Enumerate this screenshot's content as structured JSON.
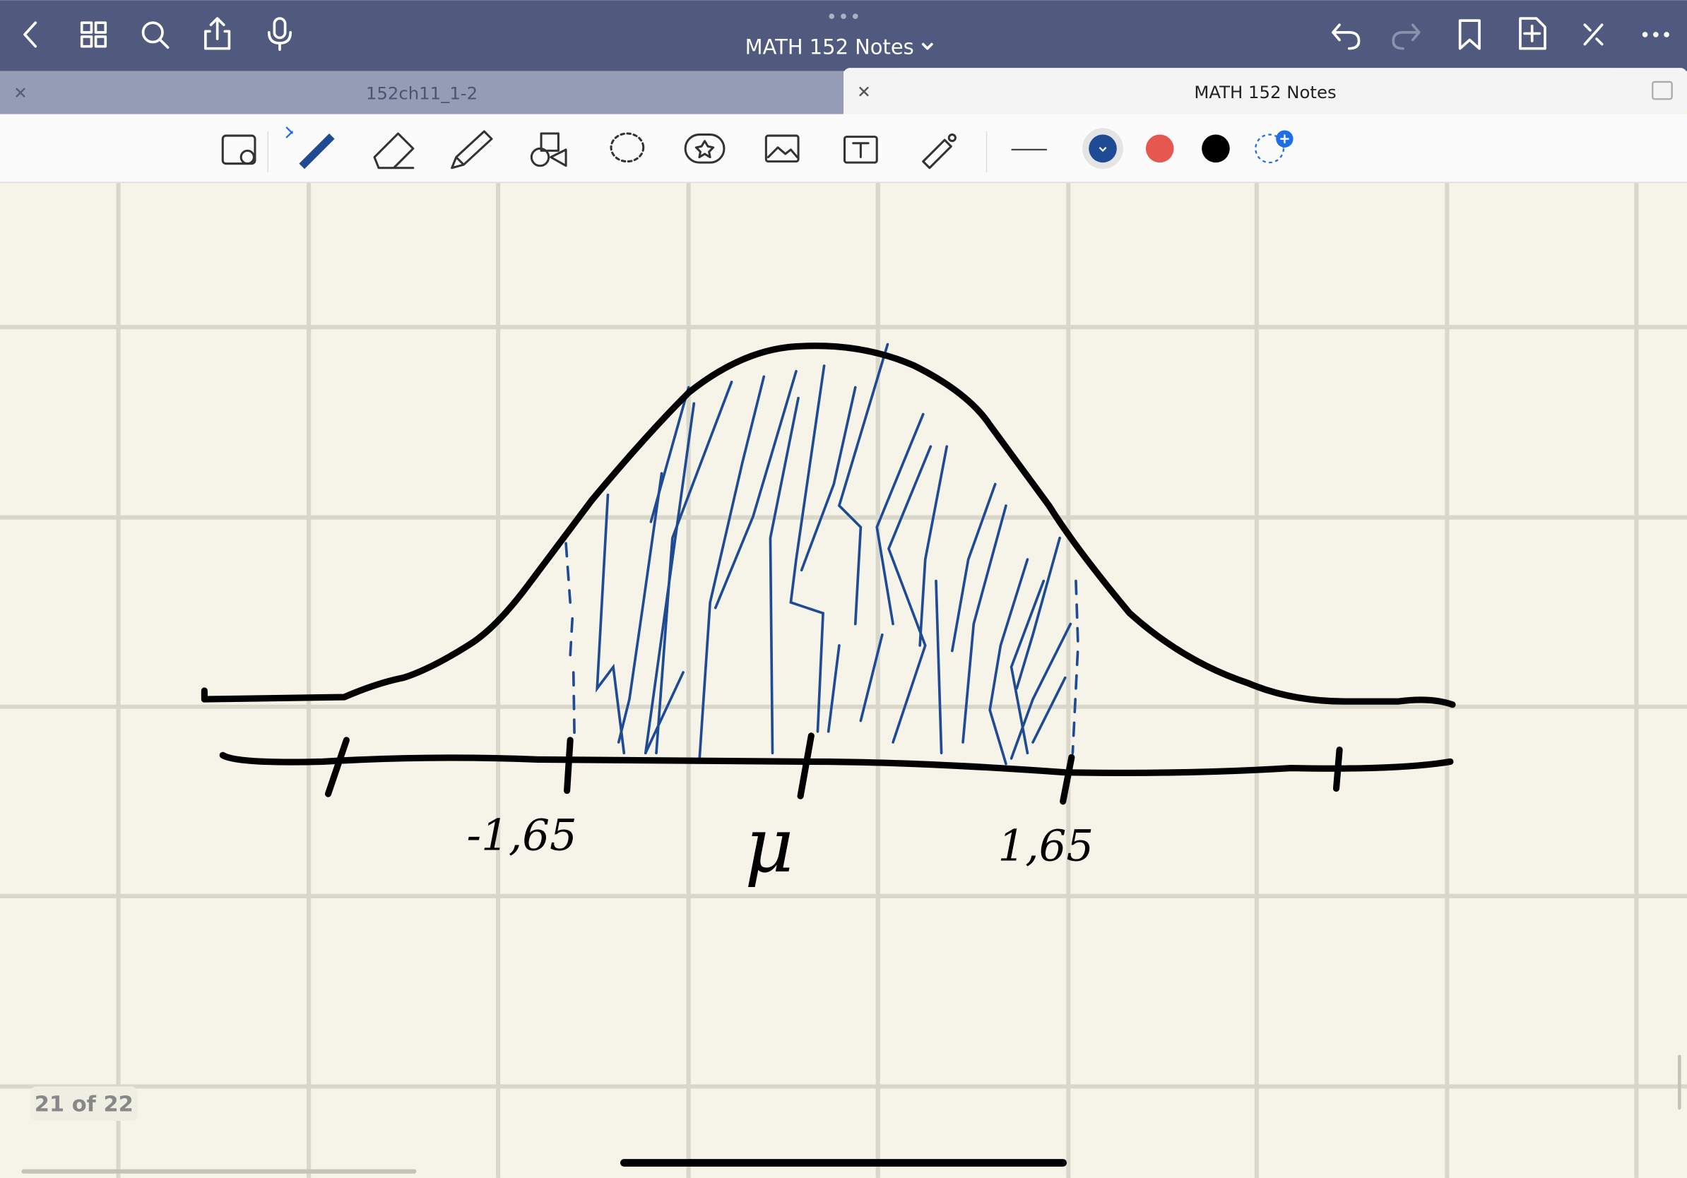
{
  "toolbar": {
    "title": "MATH 152 Notes"
  },
  "tabs": [
    {
      "label": "152ch11_1-2"
    },
    {
      "label": "MATH 152 Notes"
    }
  ],
  "page_indicator": "21 of 22",
  "sketch": {
    "labels": [
      "-1,65",
      "μ",
      "1,65"
    ]
  }
}
